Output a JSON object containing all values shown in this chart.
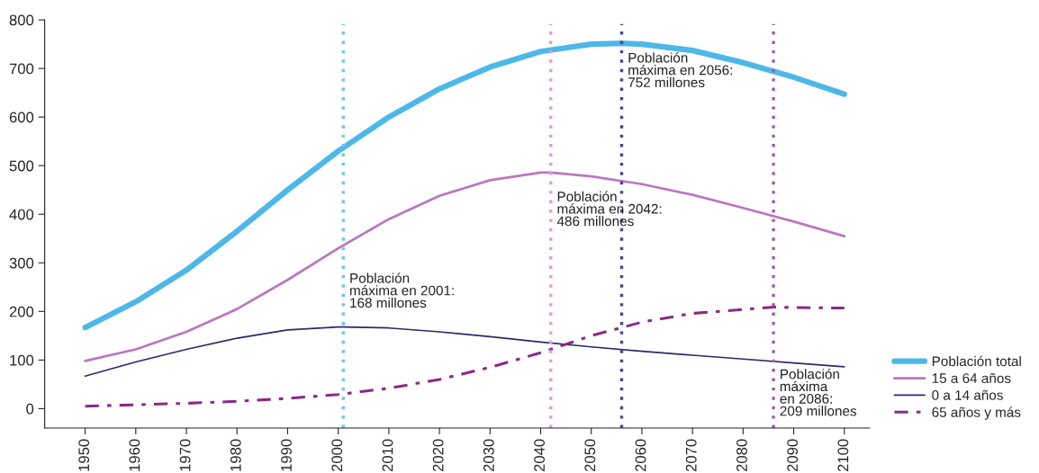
{
  "chart_data": {
    "type": "line",
    "series": [
      {
        "name": "Población total",
        "color": "#4db8e8",
        "x": [
          1950,
          1960,
          1970,
          1980,
          1990,
          2000,
          2010,
          2020,
          2030,
          2040,
          2050,
          2056,
          2060,
          2070,
          2080,
          2090,
          2100
        ],
        "values": [
          167,
          220,
          285,
          365,
          450,
          530,
          600,
          658,
          703,
          735,
          750,
          752,
          750,
          737,
          712,
          682,
          647
        ]
      },
      {
        "name": "15 a 64 años",
        "color": "#b978bf",
        "x": [
          1950,
          1960,
          1970,
          1980,
          1990,
          2000,
          2010,
          2020,
          2030,
          2040,
          2042,
          2050,
          2060,
          2070,
          2080,
          2090,
          2100
        ],
        "values": [
          98,
          122,
          158,
          205,
          265,
          330,
          390,
          438,
          470,
          486,
          486,
          478,
          462,
          440,
          413,
          385,
          355
        ]
      },
      {
        "name": "0 a 14 años",
        "color": "#2a2a6a",
        "x": [
          1950,
          1960,
          1970,
          1980,
          1990,
          2000,
          2001,
          2010,
          2020,
          2030,
          2040,
          2050,
          2060,
          2070,
          2080,
          2090,
          2100
        ],
        "values": [
          67,
          96,
          122,
          145,
          162,
          168,
          168,
          166,
          158,
          148,
          137,
          127,
          118,
          110,
          102,
          94,
          86
        ]
      },
      {
        "name": "65 años y más",
        "color": "#8b2a85",
        "line_style": "dashed",
        "x": [
          1950,
          1960,
          1970,
          1980,
          1990,
          2000,
          2010,
          2020,
          2030,
          2040,
          2050,
          2060,
          2070,
          2080,
          2086,
          2090,
          2100
        ],
        "values": [
          5,
          8,
          11,
          15,
          21,
          29,
          42,
          60,
          85,
          115,
          150,
          178,
          196,
          204,
          209,
          208,
          207
        ]
      }
    ],
    "xlim": [
      1942,
      2105
    ],
    "xticks": [
      1950,
      1960,
      1970,
      1980,
      1990,
      2000,
      2010,
      2020,
      2030,
      2040,
      2050,
      2060,
      2070,
      2080,
      2090,
      2100
    ],
    "ylim": [
      -40,
      800
    ],
    "yticks": [
      0,
      100,
      200,
      300,
      400,
      500,
      600,
      700,
      800
    ],
    "ref_lines": [
      {
        "axis": "x",
        "value": 2001,
        "label": "Población\nmáxima en 2001:\n168 millones",
        "color": "#6ec6ee",
        "line_style": "dotted"
      },
      {
        "axis": "x",
        "value": 2042,
        "label": "Población\nmáxima en 2042:\n486 millones",
        "color": "#d9a0d6",
        "line_style": "dotted"
      },
      {
        "axis": "x",
        "value": 2056,
        "label": "Población\nmáxima en 2056:\n752 millones",
        "color": "#4a4a8a",
        "line_style": "dotted"
      },
      {
        "axis": "x",
        "value": 2086,
        "label": "Población\nmáxima\nen 2086:\n209 millones",
        "color": "#a060b0",
        "line_style": "dotted"
      }
    ],
    "grid": false,
    "legend": "bottom right"
  }
}
